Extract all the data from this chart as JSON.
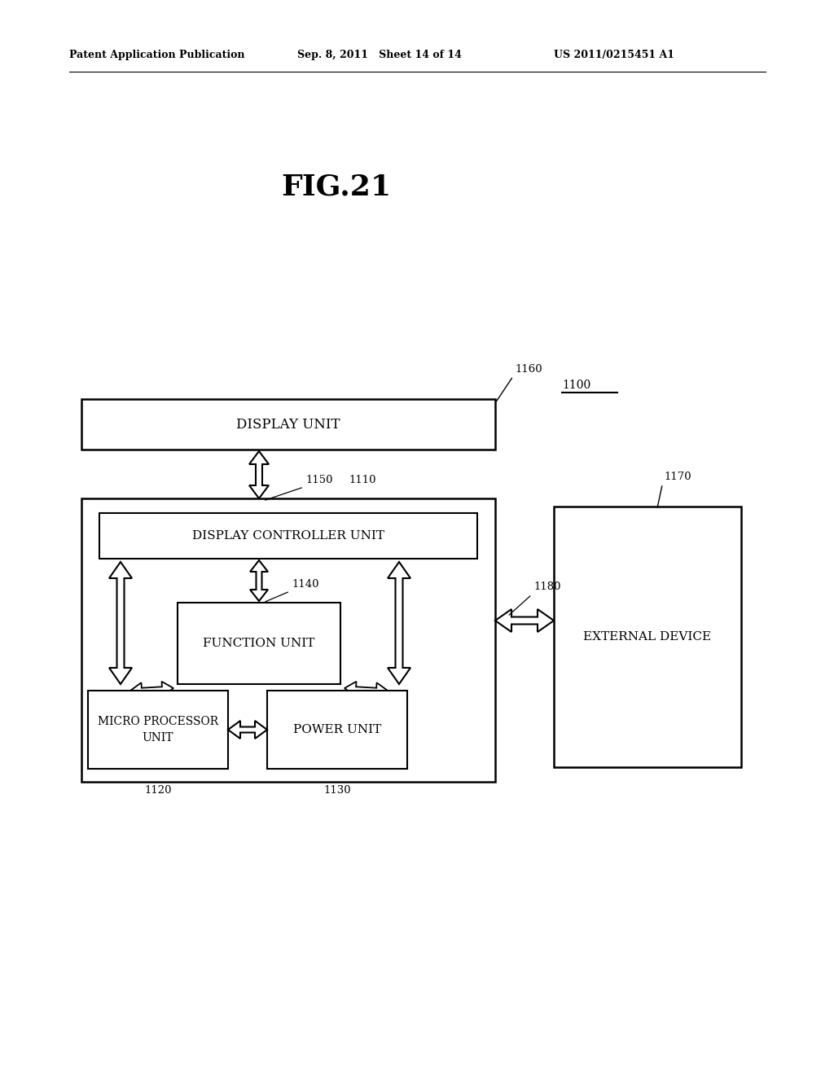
{
  "bg_color": "#ffffff",
  "title_header_left": "Patent Application Publication",
  "title_header_mid": "Sep. 8, 2011   Sheet 14 of 14",
  "title_header_right": "US 2011/0215451 A1",
  "fig_label": "FIG.21",
  "display_unit_label": "DISPLAY UNIT",
  "display_controller_label": "DISPLAY CONTROLLER UNIT",
  "function_unit_label": "FUNCTION UNIT",
  "micro_processor_label": "MICRO PROCESSOR\nUNIT",
  "power_unit_label": "POWER UNIT",
  "external_device_label": "EXTERNAL DEVICE",
  "ref_1100": "1100",
  "ref_1110": "1110",
  "ref_1120": "1120",
  "ref_1130": "1130",
  "ref_1140": "1140",
  "ref_1150": "1150",
  "ref_1160": "1160",
  "ref_1170": "1170",
  "ref_1180": "1180"
}
